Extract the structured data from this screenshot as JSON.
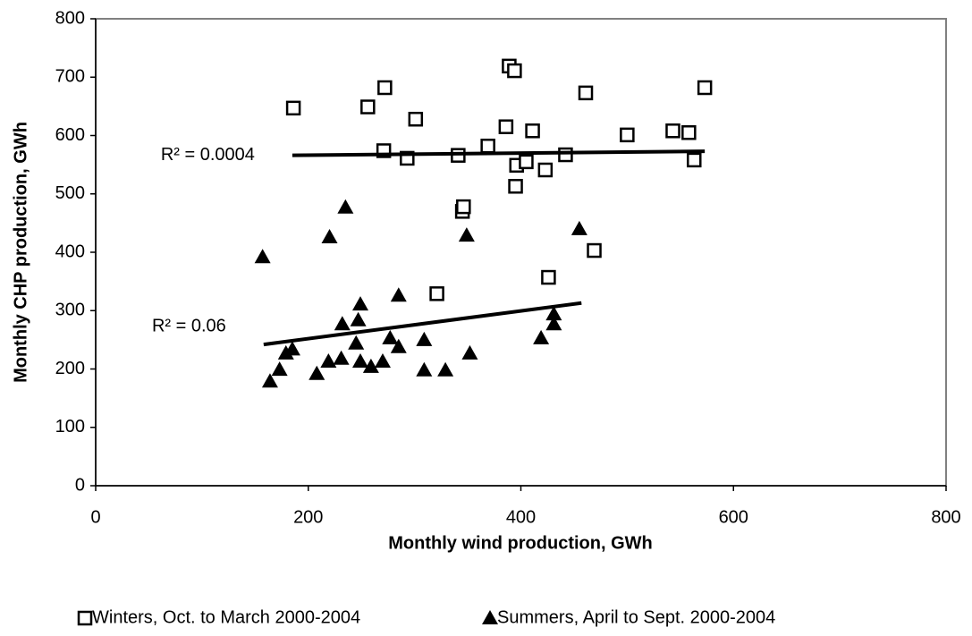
{
  "chart_data": {
    "type": "scatter",
    "xlabel": "Monthly wind production, GWh",
    "ylabel": "Monthly CHP production, GWh",
    "xlim": [
      0,
      800
    ],
    "xticks": [
      0,
      200,
      400,
      600,
      800
    ],
    "ylim": [
      0,
      800
    ],
    "yticks": [
      0,
      100,
      200,
      300,
      400,
      500,
      600,
      700,
      800
    ],
    "grid": false,
    "legend": "bottom",
    "series": [
      {
        "name": "Winters, Oct. to March 2000-2004",
        "color": "#000000",
        "marker": "square",
        "x": [
          186,
          256,
          272,
          301,
          271,
          293,
          341,
          369,
          345,
          346,
          389,
          394,
          386,
          411,
          396,
          405,
          395,
          423,
          442,
          461,
          469,
          426,
          321,
          500,
          543,
          558,
          563,
          573
        ],
        "values": [
          647,
          649,
          682,
          628,
          574,
          561,
          566,
          582,
          470,
          478,
          719,
          711,
          615,
          608,
          549,
          555,
          513,
          541,
          567,
          673,
          403,
          357,
          329,
          601,
          608,
          605,
          558,
          682
        ],
        "trendline": {
          "x": [
            185,
            573
          ],
          "values": [
            566,
            573
          ],
          "r2_label": "R² = 0.0004"
        }
      },
      {
        "name": "Summers, April to Sept. 2000-2004",
        "color": "#000000",
        "marker": "triangle",
        "x": [
          157,
          220,
          235,
          349,
          455,
          285,
          249,
          232,
          247,
          245,
          277,
          285,
          309,
          164,
          173,
          179,
          185,
          208,
          219,
          231,
          249,
          259,
          270,
          309,
          329,
          352,
          419,
          431,
          431
        ],
        "values": [
          392,
          426,
          477,
          429,
          440,
          326,
          311,
          277,
          284,
          244,
          253,
          238,
          250,
          179,
          199,
          227,
          234,
          192,
          213,
          218,
          213,
          204,
          213,
          198,
          198,
          227,
          253,
          277,
          294
        ],
        "trendline": {
          "x": [
            158,
            457
          ],
          "values": [
            242,
            313
          ],
          "r2_label": "R² = 0.06"
        }
      }
    ]
  }
}
